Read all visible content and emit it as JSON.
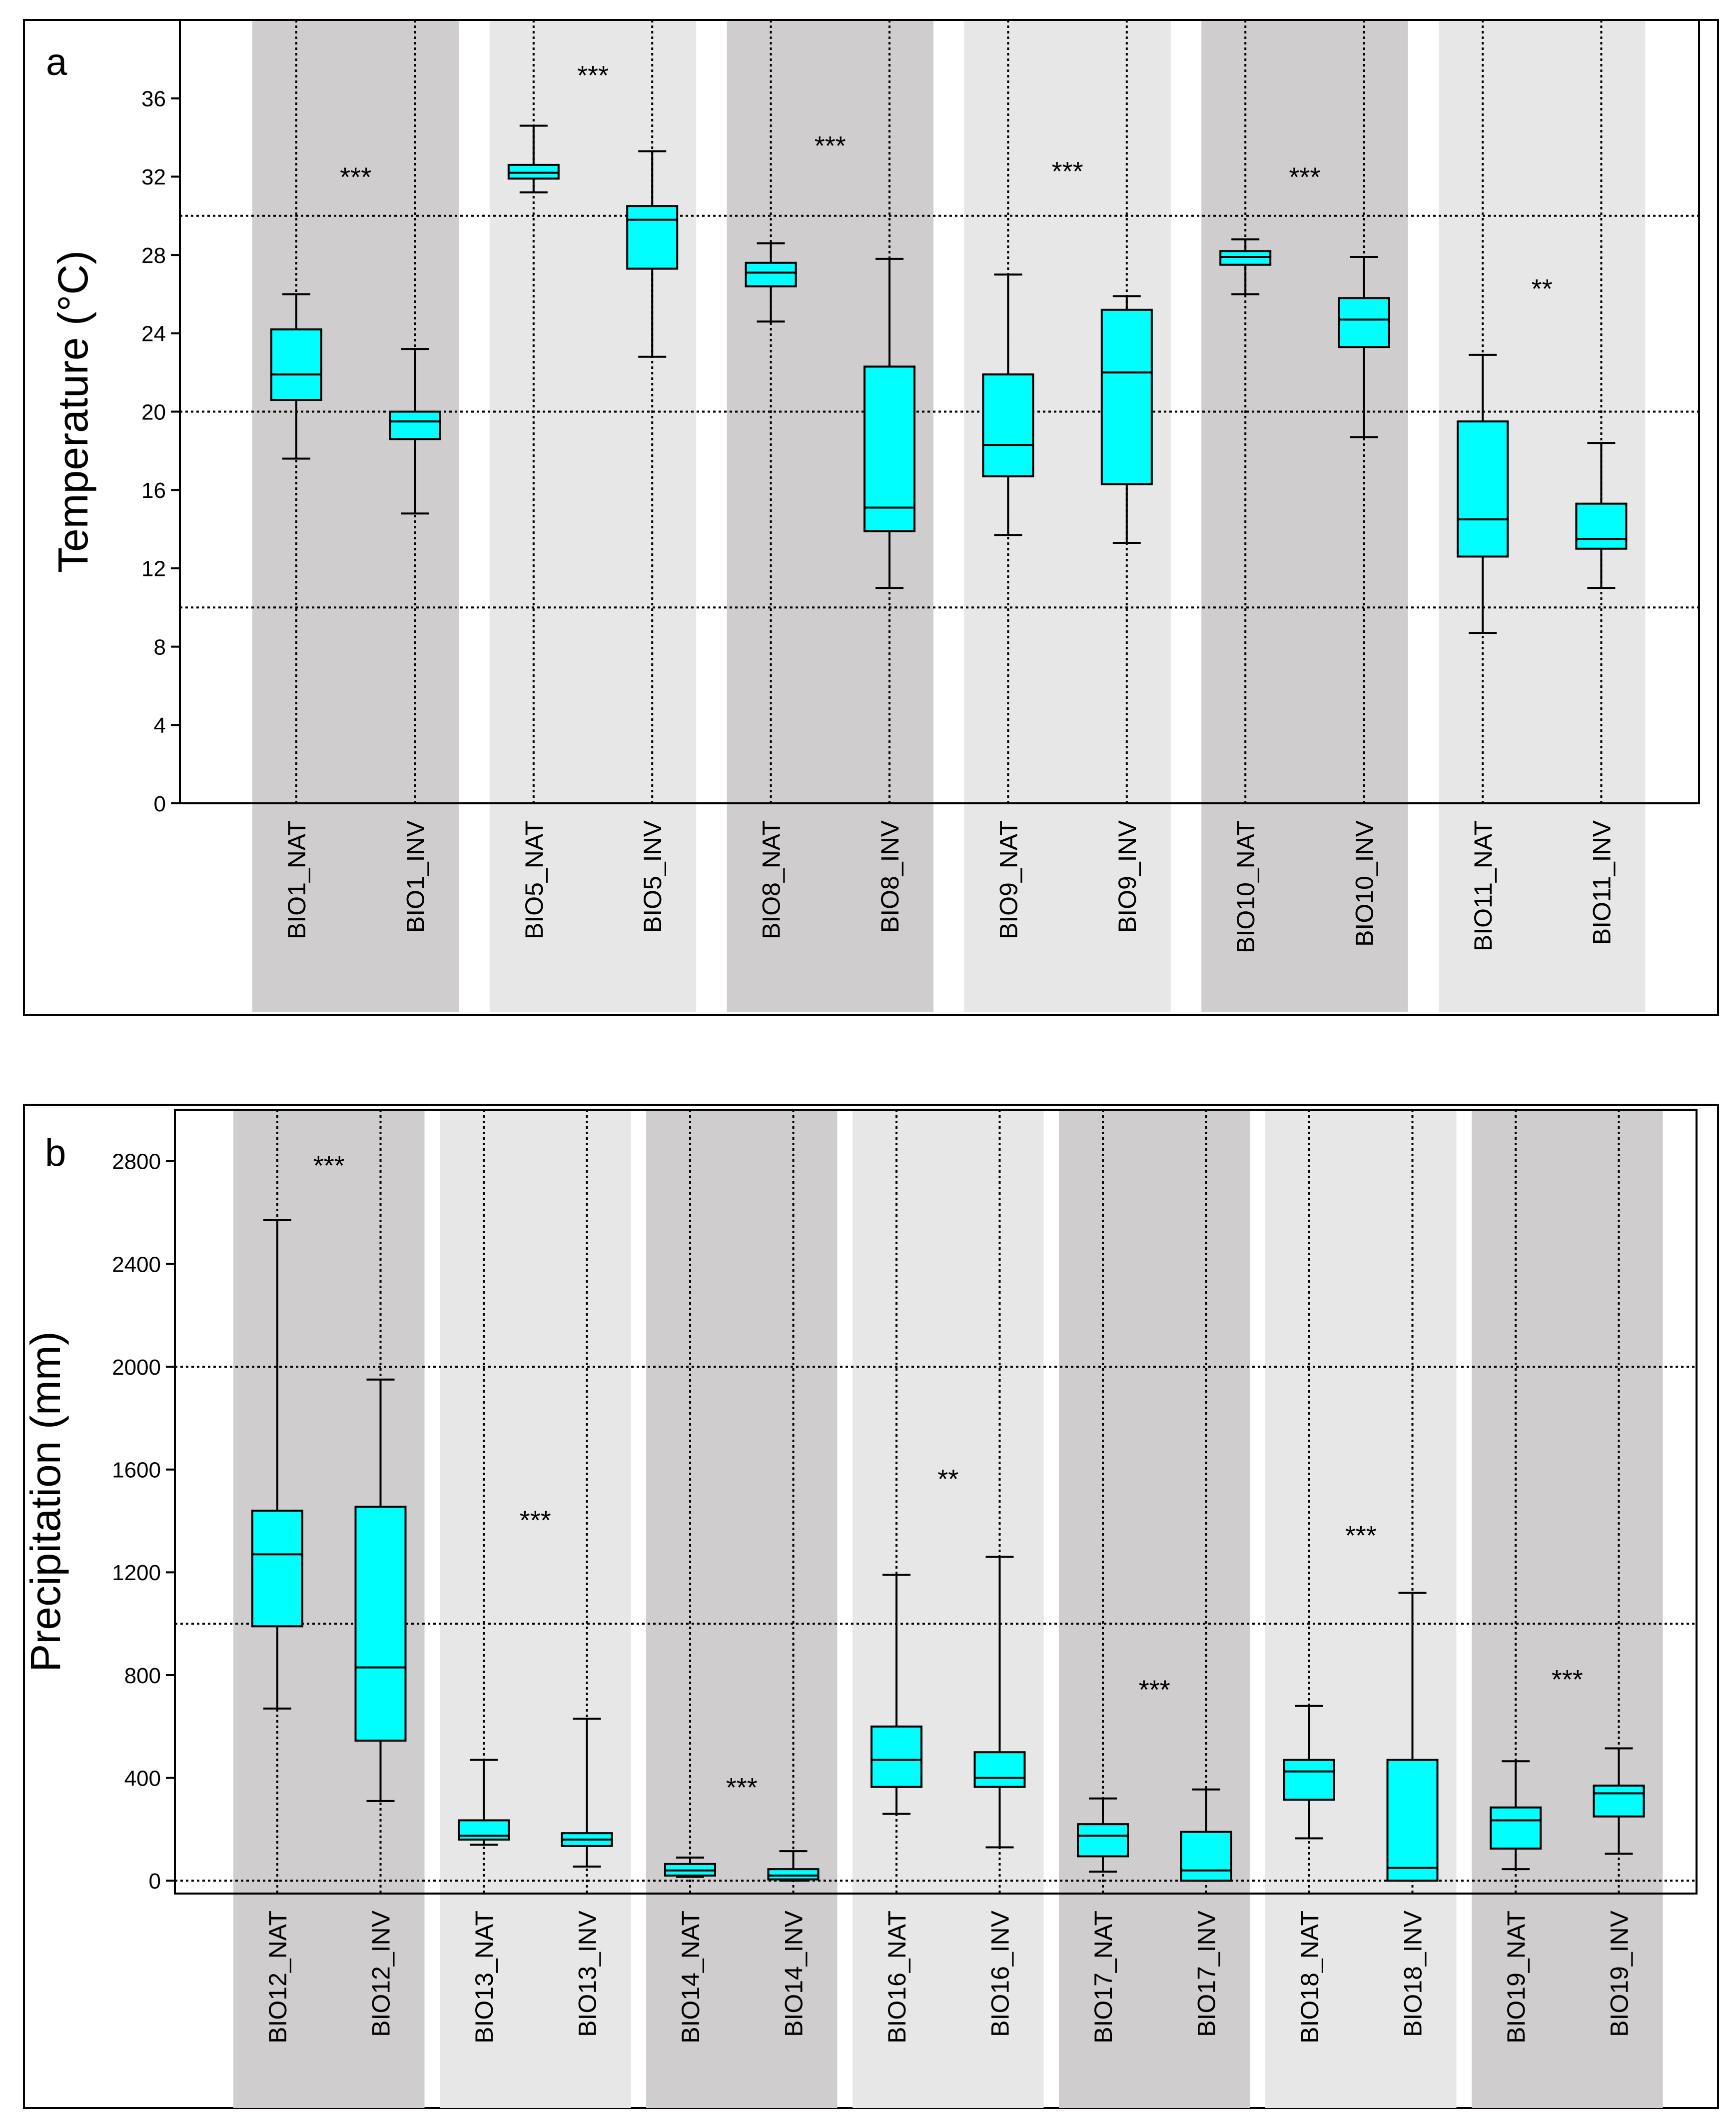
{
  "chart_data": [
    {
      "type": "boxplot",
      "panel_label": "a",
      "ylabel": "Temperature  (°C)",
      "ylim": [
        0,
        40
      ],
      "yticks": [
        0,
        4,
        8,
        12,
        16,
        20,
        24,
        28,
        32,
        36
      ],
      "reference_lines": [
        10,
        20,
        30
      ],
      "grid": "dotted vertical line at each category",
      "groups": [
        {
          "name": "BIO1",
          "shade": "dark",
          "significance": "***",
          "sig_y": 32.2,
          "categories": [
            "BIO1_NAT",
            "BIO1_INV"
          ]
        },
        {
          "name": "BIO5",
          "shade": "light",
          "significance": "***",
          "sig_y": 37.4,
          "categories": [
            "BIO5_NAT",
            "BIO5_INV"
          ]
        },
        {
          "name": "BIO8",
          "shade": "dark",
          "significance": "***",
          "sig_y": 33.8,
          "categories": [
            "BIO8_NAT",
            "BIO8_INV"
          ]
        },
        {
          "name": "BIO9",
          "shade": "light",
          "significance": "***",
          "sig_y": 32.5,
          "categories": [
            "BIO9_NAT",
            "BIO9_INV"
          ]
        },
        {
          "name": "BIO10",
          "shade": "dark",
          "significance": "***",
          "sig_y": 32.2,
          "categories": [
            "BIO10_NAT",
            "BIO10_INV"
          ]
        },
        {
          "name": "BIO11",
          "shade": "light",
          "significance": "**",
          "sig_y": 26.5,
          "categories": [
            "BIO11_NAT",
            "BIO11_INV"
          ]
        }
      ],
      "boxes": [
        {
          "label": "BIO1_NAT",
          "whisker_low": 17.6,
          "q1": 20.6,
          "median": 21.9,
          "q3": 24.2,
          "whisker_high": 26.0
        },
        {
          "label": "BIO1_INV",
          "whisker_low": 14.8,
          "q1": 18.6,
          "median": 19.5,
          "q3": 20.0,
          "whisker_high": 23.2
        },
        {
          "label": "BIO5_NAT",
          "whisker_low": 31.2,
          "q1": 31.9,
          "median": 32.2,
          "q3": 32.6,
          "whisker_high": 34.6
        },
        {
          "label": "BIO5_INV",
          "whisker_low": 22.8,
          "q1": 27.3,
          "median": 29.8,
          "q3": 30.5,
          "whisker_high": 33.3
        },
        {
          "label": "BIO8_NAT",
          "whisker_low": 24.6,
          "q1": 26.4,
          "median": 27.1,
          "q3": 27.6,
          "whisker_high": 28.6
        },
        {
          "label": "BIO8_INV",
          "whisker_low": 11.0,
          "q1": 13.9,
          "median": 15.1,
          "q3": 22.3,
          "whisker_high": 27.8
        },
        {
          "label": "BIO9_NAT",
          "whisker_low": 13.7,
          "q1": 16.7,
          "median": 18.3,
          "q3": 21.9,
          "whisker_high": 27.0
        },
        {
          "label": "BIO9_INV",
          "whisker_low": 13.3,
          "q1": 16.3,
          "median": 22.0,
          "q3": 25.2,
          "whisker_high": 25.9
        },
        {
          "label": "BIO10_NAT",
          "whisker_low": 26.0,
          "q1": 27.5,
          "median": 27.9,
          "q3": 28.2,
          "whisker_high": 28.8
        },
        {
          "label": "BIO10_INV",
          "whisker_low": 18.7,
          "q1": 23.3,
          "median": 24.7,
          "q3": 25.8,
          "whisker_high": 27.9
        },
        {
          "label": "BIO11_NAT",
          "whisker_low": 8.7,
          "q1": 12.6,
          "median": 14.5,
          "q3": 19.5,
          "whisker_high": 22.9
        },
        {
          "label": "BIO11_INV",
          "whisker_low": 11.0,
          "q1": 13.0,
          "median": 13.5,
          "q3": 15.3,
          "whisker_high": 18.4
        }
      ]
    },
    {
      "type": "boxplot",
      "panel_label": "b",
      "ylabel": "Precipitation (mm)",
      "ylim": [
        -50,
        3000
      ],
      "yticks": [
        0,
        400,
        800,
        1200,
        1600,
        2000,
        2400,
        2800
      ],
      "reference_lines": [
        0,
        1000,
        2000
      ],
      "grid": "dotted vertical line at each category",
      "groups": [
        {
          "name": "BIO12",
          "shade": "dark",
          "significance": "***",
          "sig_y": 2800,
          "categories": [
            "BIO12_NAT",
            "BIO12_INV"
          ]
        },
        {
          "name": "BIO13",
          "shade": "light",
          "significance": "***",
          "sig_y": 1420,
          "categories": [
            "BIO13_NAT",
            "BIO13_INV"
          ]
        },
        {
          "name": "BIO14",
          "shade": "dark",
          "significance": "***",
          "sig_y": 380,
          "categories": [
            "BIO14_NAT",
            "BIO14_INV"
          ]
        },
        {
          "name": "BIO16",
          "shade": "light",
          "significance": "**",
          "sig_y": 1580,
          "categories": [
            "BIO16_NAT",
            "BIO16_INV"
          ]
        },
        {
          "name": "BIO17",
          "shade": "dark",
          "significance": "***",
          "sig_y": 760,
          "categories": [
            "BIO17_NAT",
            "BIO17_INV"
          ]
        },
        {
          "name": "BIO18",
          "shade": "light",
          "significance": "***",
          "sig_y": 1360,
          "categories": [
            "BIO18_NAT",
            "BIO18_INV"
          ]
        },
        {
          "name": "BIO19",
          "shade": "dark",
          "significance": "***",
          "sig_y": 800,
          "categories": [
            "BIO19_NAT",
            "BIO19_INV"
          ]
        }
      ],
      "boxes": [
        {
          "label": "BIO12_NAT",
          "whisker_low": 670,
          "q1": 990,
          "median": 1270,
          "q3": 1440,
          "whisker_high": 2570
        },
        {
          "label": "BIO12_INV",
          "whisker_low": 310,
          "q1": 545,
          "median": 830,
          "q3": 1455,
          "whisker_high": 1950
        },
        {
          "label": "BIO13_NAT",
          "whisker_low": 140,
          "q1": 160,
          "median": 175,
          "q3": 235,
          "whisker_high": 470
        },
        {
          "label": "BIO13_INV",
          "whisker_low": 55,
          "q1": 135,
          "median": 160,
          "q3": 185,
          "whisker_high": 630
        },
        {
          "label": "BIO14_NAT",
          "whisker_low": 15,
          "q1": 20,
          "median": 40,
          "q3": 65,
          "whisker_high": 90
        },
        {
          "label": "BIO14_INV",
          "whisker_low": 0,
          "q1": 5,
          "median": 20,
          "q3": 45,
          "whisker_high": 115
        },
        {
          "label": "BIO16_NAT",
          "whisker_low": 260,
          "q1": 365,
          "median": 470,
          "q3": 600,
          "whisker_high": 1190
        },
        {
          "label": "BIO16_INV",
          "whisker_low": 130,
          "q1": 365,
          "median": 400,
          "q3": 500,
          "whisker_high": 1260
        },
        {
          "label": "BIO17_NAT",
          "whisker_low": 35,
          "q1": 95,
          "median": 175,
          "q3": 220,
          "whisker_high": 320
        },
        {
          "label": "BIO17_INV",
          "whisker_low": 0,
          "q1": 0,
          "median": 40,
          "q3": 190,
          "whisker_high": 355
        },
        {
          "label": "BIO18_NAT",
          "whisker_low": 165,
          "q1": 315,
          "median": 425,
          "q3": 470,
          "whisker_high": 680
        },
        {
          "label": "BIO18_INV",
          "whisker_low": 0,
          "q1": 0,
          "median": 50,
          "q3": 470,
          "whisker_high": 1120
        },
        {
          "label": "BIO19_NAT",
          "whisker_low": 45,
          "q1": 125,
          "median": 235,
          "q3": 285,
          "whisker_high": 465
        },
        {
          "label": "BIO19_INV",
          "whisker_low": 105,
          "q1": 250,
          "median": 340,
          "q3": 370,
          "whisker_high": 515
        }
      ]
    }
  ],
  "colors": {
    "box_fill": "#00FFFF",
    "dark_band": "#CFCDCE",
    "light_band": "#E7E7E7",
    "line": "#000000"
  }
}
